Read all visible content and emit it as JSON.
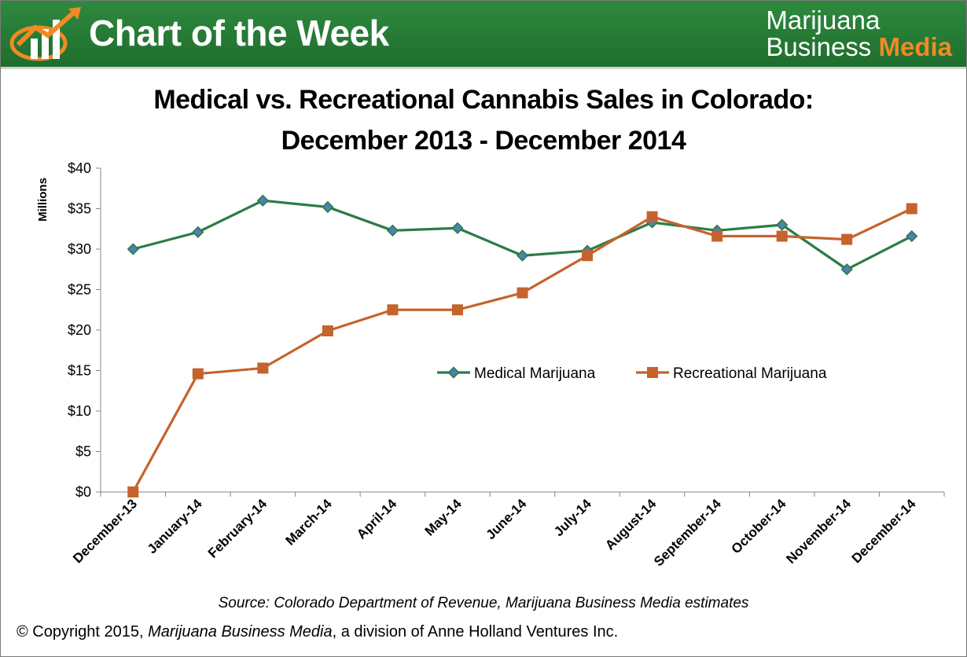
{
  "banner": {
    "title": "Chart of the Week",
    "brand_line1": "Marijuana",
    "brand_line2_prefix": "Business ",
    "brand_line2_accent": "Media",
    "logo_icon": "rising-bar-chart-arrow-icon",
    "colors": {
      "banner_green": "#267c36",
      "accent_orange": "#f08a24"
    }
  },
  "chart_data": {
    "type": "line",
    "title_line1": "Medical vs. Recreational Cannabis Sales in Colorado:",
    "title_line2": "December 2013 - December 2014",
    "ylabel": "Millions",
    "xlabel": "",
    "ylim": [
      0,
      40
    ],
    "y_ticks": [
      "$0",
      "$5",
      "$10",
      "$15",
      "$20",
      "$25",
      "$30",
      "$35",
      "$40"
    ],
    "categories": [
      "December-13",
      "January-14",
      "February-14",
      "March-14",
      "April-14",
      "May-14",
      "June-14",
      "July-14",
      "August-14",
      "September-14",
      "October-14",
      "November-14",
      "December-14"
    ],
    "series": [
      {
        "name": "Medical Marijuana",
        "color": "#2a7d46",
        "marker": "diamond",
        "values": [
          30.0,
          32.1,
          36.0,
          35.2,
          32.3,
          32.6,
          29.2,
          29.8,
          33.3,
          32.3,
          33.0,
          27.5,
          31.6
        ]
      },
      {
        "name": "Recreational Marijuana",
        "color": "#c5632c",
        "marker": "square",
        "values": [
          0.0,
          14.6,
          15.3,
          19.9,
          22.5,
          22.5,
          24.6,
          29.2,
          34.0,
          31.6,
          31.6,
          31.2,
          35.0
        ]
      }
    ],
    "grid": false,
    "legend_position": "center-right"
  },
  "source": "Source: Colorado Department of Revenue, Marijuana Business Media estimates",
  "copyright": {
    "prefix": "© Copyright 2015, ",
    "italic": "Marijuana Business Media",
    "suffix": ", a division of Anne Holland Ventures Inc."
  }
}
